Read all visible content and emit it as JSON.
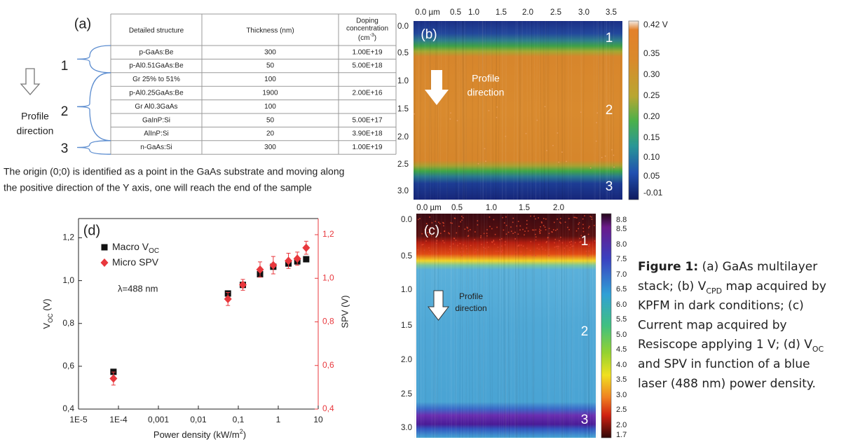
{
  "panel_a": {
    "label": "(a)",
    "table": {
      "header": [
        "Detailed structure",
        "Thickness (nm)"
      ],
      "doping_header": {
        "lines": [
          "Doping",
          "concentration"
        ],
        "unit_open": "(cm",
        "unit_exp": "-3",
        "unit_close": ")"
      },
      "rows": [
        [
          "p-GaAs:Be",
          300,
          "1.00E+19"
        ],
        [
          "p-Al0.51GaAs:Be",
          50,
          "5.00E+18"
        ],
        [
          "Gr 25% to 51%",
          100
        ],
        [
          "p-Al0.25GaAs:Be",
          1900,
          "2.00E+16"
        ],
        [
          "Gr Al0.3GaAs",
          100
        ],
        [
          "GaInP:Si",
          50,
          "5.00E+17"
        ],
        [
          "AlInP:Si",
          20,
          "3.90E+18"
        ],
        [
          "n-GaAs:Si",
          300,
          "1.00E+19"
        ]
      ]
    },
    "groups": [
      "1",
      "2",
      "3"
    ],
    "arrow_text": [
      "Profile",
      "direction"
    ],
    "note": [
      "The origin (0;0) is identified as a point in the GaAs substrate and moving along",
      "the positive direction of the Y axis, one will reach the end of the sample"
    ]
  },
  "panel_b": {
    "label": "(b)",
    "x_labels": [
      "0.0 µm",
      "0.5",
      "1.0",
      "1.5",
      "2.0",
      "2.5",
      "3.0",
      "3.5"
    ],
    "y_labels": [
      "0.0",
      "0.5",
      "1.0",
      "1.5",
      "2.0",
      "2.5",
      "3.0"
    ],
    "colorbar_labels": [
      "0.42 V",
      "0.35",
      "0.30",
      "0.25",
      "0.20",
      "0.15",
      "0.10",
      "0.05",
      "-0.01"
    ],
    "regions": [
      "1",
      "2",
      "3"
    ],
    "arrow_text": [
      "Profile",
      "direction"
    ]
  },
  "panel_c": {
    "label": "(c)",
    "x_labels": [
      "0.0 µm",
      "0.5",
      "1.0",
      "1.5",
      "2.0"
    ],
    "y_labels": [
      "0.0",
      "0.5",
      "1.0",
      "1.5",
      "2.0",
      "2.5",
      "3.0"
    ],
    "colorbar_labels": [
      "8.8",
      "8.5",
      "8.0",
      "7.5",
      "7.0",
      "6.5",
      "6.0",
      "5.5",
      "5.0",
      "4.5",
      "4.0",
      "3.5",
      "3.0",
      "2.5",
      "2.0",
      "1.7"
    ],
    "regions": [
      "1",
      "2",
      "3"
    ],
    "arrow_text": [
      "Profile",
      "direction"
    ]
  },
  "chart_data": {
    "type": "scatter",
    "label": "(d)",
    "annotation": "λ=488 nm",
    "xlabel": {
      "text": "Power density (kW/m",
      "sup": "2",
      "close": ")"
    },
    "ylabel": {
      "text": "V",
      "sub": "OC",
      "rest": " (V)"
    },
    "y2label": "SPV (V)",
    "y2color": "#e8383d",
    "log_x": true,
    "xlim": [
      1e-05,
      10
    ],
    "xticks": [
      {
        "value": 1e-05,
        "label": "1E-5"
      },
      {
        "value": 0.0001,
        "label": "1E-4"
      },
      {
        "value": 0.001,
        "label": "0,001"
      },
      {
        "value": 0.01,
        "label": "0,01"
      },
      {
        "value": 0.1,
        "label": "0,1"
      },
      1,
      10
    ],
    "ylim": [
      0.4,
      1.29
    ],
    "yticks": [
      {
        "value": 0.4,
        "label": "0,4"
      },
      {
        "value": 0.6,
        "label": "0,6"
      },
      {
        "value": 0.8,
        "label": "0,8"
      },
      {
        "value": 1.0,
        "label": "1,0"
      },
      {
        "value": 1.2,
        "label": "1,2"
      }
    ],
    "y2lim": [
      0.4,
      1.274
    ],
    "y2ticks": [
      {
        "value": 0.4,
        "label": "0,4"
      },
      {
        "value": 0.6,
        "label": "0,6"
      },
      {
        "value": 0.8,
        "label": "0,8"
      },
      {
        "value": 1.0,
        "label": "1,0"
      },
      {
        "value": 1.2,
        "label": "1,2"
      }
    ],
    "series": [
      {
        "name": "Macro V",
        "name_sub": "OC",
        "color": "#111111",
        "marker": "square",
        "x": [
          7.5e-05,
          0.055,
          0.13,
          0.35,
          0.75,
          1.8,
          3,
          5
        ],
        "values": [
          0.574,
          0.94,
          0.98,
          1.03,
          1.065,
          1.08,
          1.09,
          1.1
        ]
      },
      {
        "name": "Micro SPV",
        "color": "#e8383d",
        "marker": "diamond",
        "axis": "y2",
        "x": [
          7.5e-05,
          0.055,
          0.13,
          0.35,
          0.75,
          1.8,
          3,
          5
        ],
        "values": [
          0.54,
          0.905,
          0.97,
          1.04,
          1.06,
          1.08,
          1.09,
          1.14
        ],
        "errors": [
          0.03,
          0.03,
          0.025,
          0.035,
          0.04,
          0.035,
          0.03,
          0.03
        ]
      }
    ]
  },
  "caption": {
    "lines": [
      [
        {
          "bold": "Figure 1:"
        },
        " (a) GaAs multilayer"
      ],
      [
        "stack; (b) V",
        {
          "sub": "CPD"
        },
        " map acquired by"
      ],
      [
        "KPFM in dark conditions; (c)"
      ],
      [
        "Current map acquired by"
      ],
      [
        "Resiscope applying 1 V; (d) V",
        {
          "sub": "OC"
        }
      ],
      [
        "and SPV in function of a blue"
      ],
      [
        "laser (488 nm) power density."
      ]
    ]
  }
}
